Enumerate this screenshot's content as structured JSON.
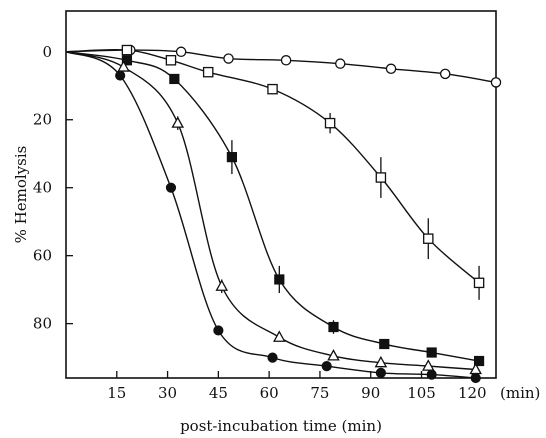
{
  "chart_data": {
    "type": "scatter",
    "title": "",
    "xlabel": "post-incubation time (min)",
    "ylabel": "% Hemolysis",
    "x_unit_label": "(min)",
    "xlim": [
      0,
      127
    ],
    "ylim": [
      -12,
      96
    ],
    "y_inverted": true,
    "x_ticks": [
      15,
      30,
      45,
      60,
      75,
      90,
      105,
      120
    ],
    "y_ticks": [
      0,
      20,
      40,
      60,
      80
    ],
    "grid": false,
    "series": [
      {
        "marker": "open-circle",
        "x": [
          0,
          19,
          34,
          48,
          65,
          81,
          96,
          112,
          127
        ],
        "y": [
          0,
          -0.5,
          0,
          2,
          2.5,
          3.5,
          5,
          6.5,
          9
        ],
        "err": [
          0,
          0,
          0,
          0,
          0,
          0,
          0,
          0,
          0
        ]
      },
      {
        "marker": "open-square",
        "x": [
          0,
          18,
          31,
          42,
          61,
          78,
          93,
          107,
          122
        ],
        "y": [
          0,
          -0.5,
          2.5,
          6,
          11,
          21,
          37,
          55,
          68
        ],
        "err": [
          0,
          0,
          0,
          0,
          0,
          3,
          6,
          6,
          5
        ]
      },
      {
        "marker": "filled-square",
        "x": [
          0,
          18,
          32,
          49,
          63,
          79,
          94,
          108,
          122
        ],
        "y": [
          0,
          2.5,
          8,
          31,
          67,
          81,
          86,
          88.5,
          91
        ],
        "err": [
          0,
          0,
          0,
          5,
          4,
          2,
          0,
          0,
          0
        ]
      },
      {
        "marker": "open-triangle",
        "x": [
          0,
          17,
          33,
          46,
          63,
          79,
          93,
          107,
          121
        ],
        "y": [
          0,
          4.5,
          21,
          69,
          84,
          89.5,
          91.5,
          92.5,
          93.5
        ],
        "err": [
          0,
          0,
          2,
          2,
          0,
          0,
          0,
          0,
          0
        ]
      },
      {
        "marker": "filled-circle",
        "x": [
          0,
          16,
          31,
          45,
          61,
          77,
          93,
          108,
          121
        ],
        "y": [
          0,
          7,
          40,
          82,
          90,
          92.5,
          94.5,
          95,
          96
        ],
        "err": [
          0,
          0,
          0,
          0,
          0,
          0,
          0,
          0,
          0
        ]
      }
    ]
  }
}
